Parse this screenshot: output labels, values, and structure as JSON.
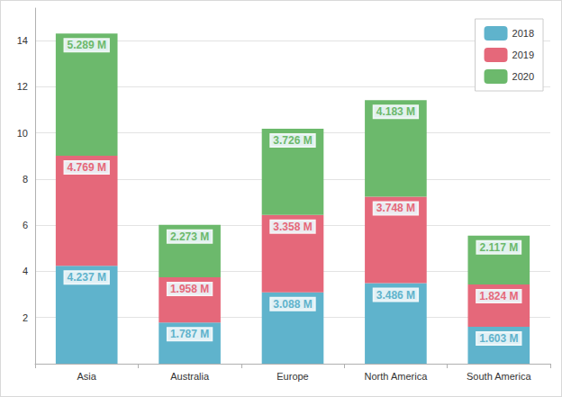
{
  "chart_data": {
    "type": "bar",
    "categories": [
      "Asia",
      "Australia",
      "Europe",
      "North America",
      "South America"
    ],
    "series": [
      {
        "name": "2018",
        "color": "#5fb3cc",
        "values": [
          4.237,
          1.787,
          3.088,
          3.486,
          1.603
        ],
        "value_labels": [
          "4.237 M",
          "1.787 M",
          "3.088 M",
          "3.486 M",
          "1.603 M"
        ]
      },
      {
        "name": "2019",
        "color": "#e5687a",
        "values": [
          4.769,
          1.958,
          3.358,
          3.748,
          1.824
        ],
        "value_labels": [
          "4.769 M",
          "1.958 M",
          "3.358 M",
          "3.748 M",
          "1.824 M"
        ]
      },
      {
        "name": "2020",
        "color": "#6cb96c",
        "values": [
          5.289,
          2.273,
          3.726,
          4.183,
          2.117
        ],
        "value_labels": [
          "5.289 M",
          "2.273 M",
          "3.726 M",
          "4.183 M",
          "2.117 M"
        ]
      }
    ],
    "ylim": [
      0,
      15.4
    ],
    "yticks": [
      2,
      4,
      6,
      8,
      10,
      12,
      14
    ],
    "grid": true,
    "stacked": true,
    "data_labels": true,
    "legend": "top-right"
  }
}
